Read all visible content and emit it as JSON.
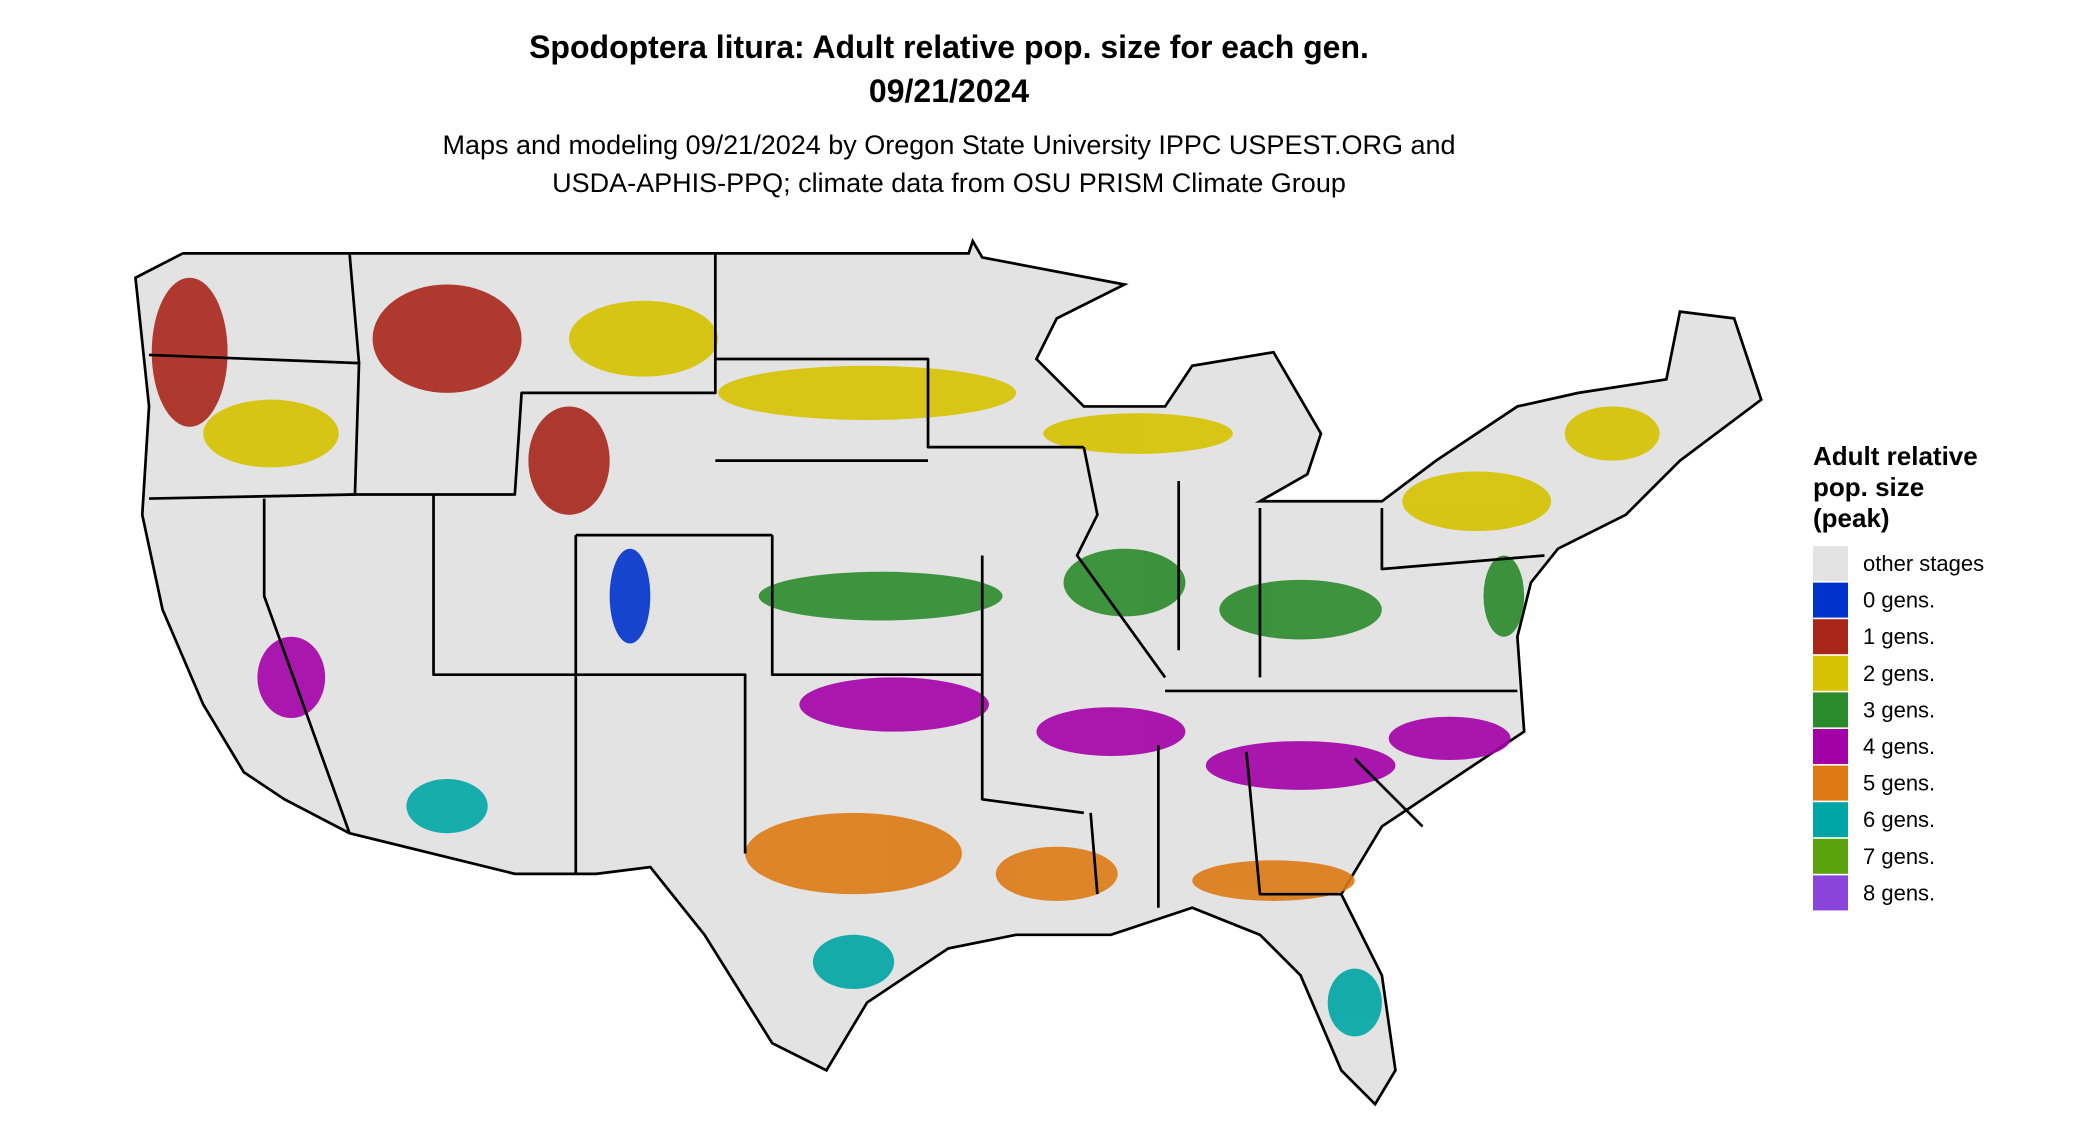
{
  "title": [
    "Spodoptera litura: Adult relative pop. size for each gen.",
    "09/21/2024"
  ],
  "subtitle": [
    "Maps and modeling 09/21/2024 by Oregon State University IPPC USPEST.ORG and",
    "USDA-APHIS-PPQ; climate data from OSU PRISM Climate Group"
  ],
  "legend": {
    "title": [
      "Adult relative",
      "pop. size",
      "(peak)"
    ],
    "items": [
      {
        "label": "other stages",
        "color": "#e3e3e3"
      },
      {
        "label": "0 gens.",
        "color": "#0033cc"
      },
      {
        "label": "1 gens.",
        "color": "#a8261a"
      },
      {
        "label": "2 gens.",
        "color": "#d6c200"
      },
      {
        "label": "3 gens.",
        "color": "#2b8a2b"
      },
      {
        "label": "4 gens.",
        "color": "#a300a8"
      },
      {
        "label": "5 gens.",
        "color": "#de7a14"
      },
      {
        "label": "6 gens.",
        "color": "#00a6a6"
      },
      {
        "label": "7 gens.",
        "color": "#5aa30c"
      },
      {
        "label": "8 gens.",
        "color": "#8a44dc"
      }
    ]
  }
}
